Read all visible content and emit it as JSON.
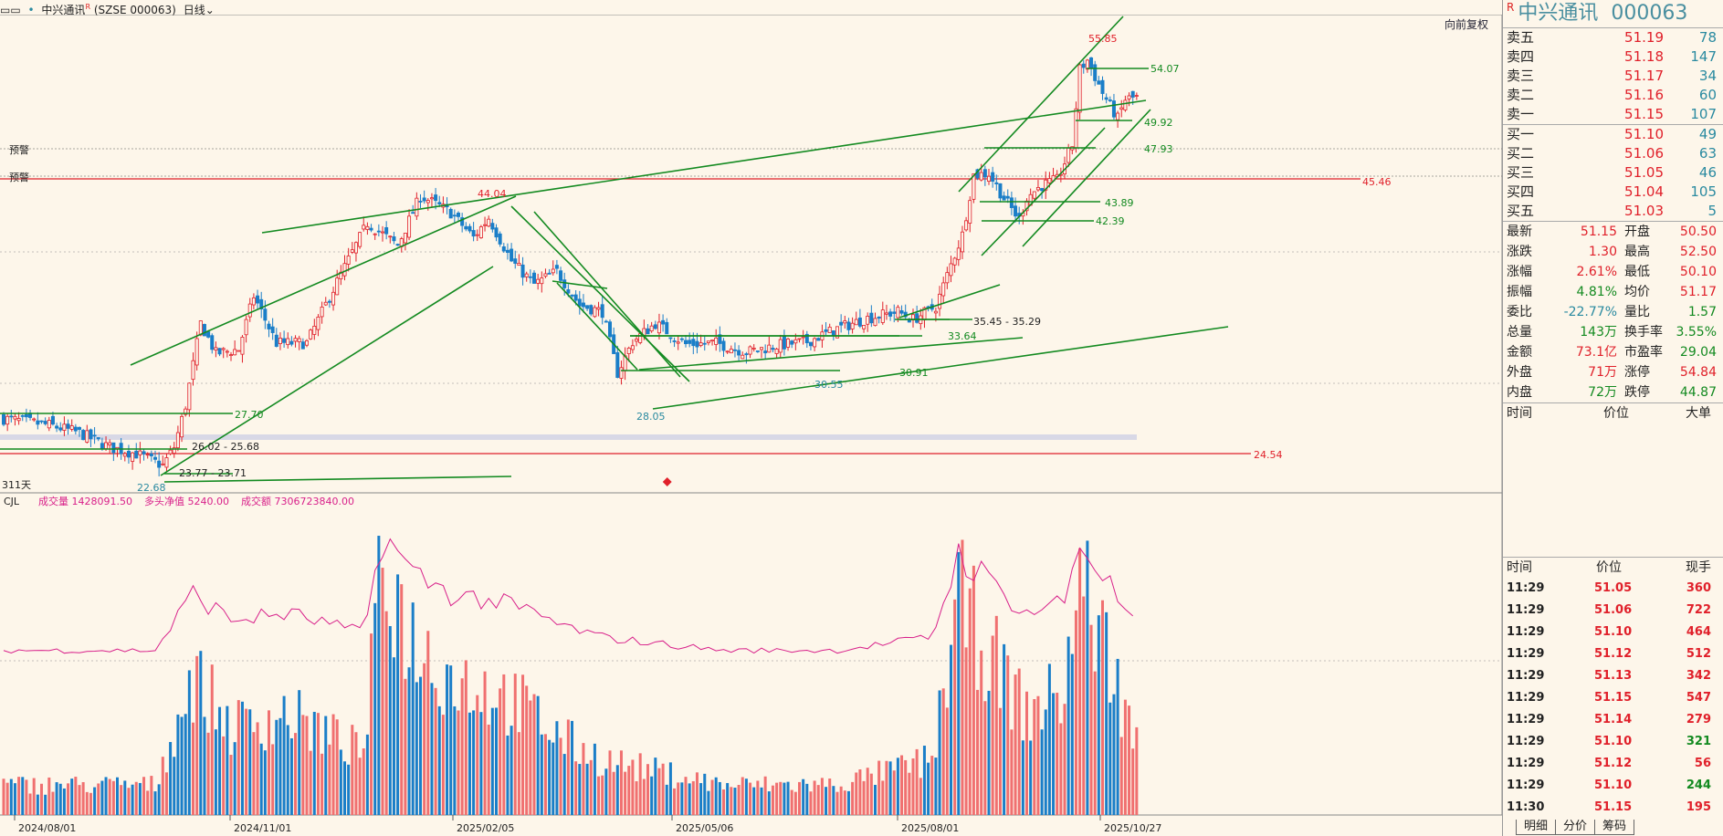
{
  "header": {
    "stock_name": "中兴通讯",
    "superscript": "R",
    "market_code": "(SZSE 000063)",
    "period": "日线",
    "forward_adjust": "向前复权"
  },
  "right_panel": {
    "title_badge": "R",
    "title_name": "中兴通讯",
    "title_code": "000063",
    "sell": [
      {
        "label": "卖五",
        "price": "51.19",
        "vol": "78"
      },
      {
        "label": "卖四",
        "price": "51.18",
        "vol": "147"
      },
      {
        "label": "卖三",
        "price": "51.17",
        "vol": "34"
      },
      {
        "label": "卖二",
        "price": "51.16",
        "vol": "60"
      },
      {
        "label": "卖一",
        "price": "51.15",
        "vol": "107"
      }
    ],
    "buy": [
      {
        "label": "买一",
        "price": "51.10",
        "vol": "49"
      },
      {
        "label": "买二",
        "price": "51.06",
        "vol": "63"
      },
      {
        "label": "买三",
        "price": "51.05",
        "vol": "46"
      },
      {
        "label": "买四",
        "price": "51.04",
        "vol": "105"
      },
      {
        "label": "买五",
        "price": "51.03",
        "vol": "5"
      }
    ],
    "stats": [
      {
        "l1": "最新",
        "v1": "51.15",
        "c1": "red",
        "l2": "开盘",
        "v2": "50.50",
        "c2": "red"
      },
      {
        "l1": "涨跌",
        "v1": "1.30",
        "c1": "red",
        "l2": "最高",
        "v2": "52.50",
        "c2": "red"
      },
      {
        "l1": "涨幅",
        "v1": "2.61%",
        "c1": "red",
        "l2": "最低",
        "v2": "50.10",
        "c2": "red"
      },
      {
        "l1": "振幅",
        "v1": "4.81%",
        "c1": "green",
        "l2": "均价",
        "v2": "51.17",
        "c2": "red"
      },
      {
        "l1": "委比",
        "v1": "-22.77%",
        "c1": "teal",
        "l2": "量比",
        "v2": "1.57",
        "c2": "green"
      },
      {
        "l1": "总量",
        "v1": "143万",
        "c1": "green",
        "l2": "换手率",
        "v2": "3.55%",
        "c2": "green"
      },
      {
        "l1": "金额",
        "v1": "73.1亿",
        "c1": "red",
        "l2": "市盈率",
        "v2": "29.04",
        "c2": "green"
      },
      {
        "l1": "外盘",
        "v1": "71万",
        "c1": "red",
        "l2": "涨停",
        "v2": "54.84",
        "c2": "red"
      },
      {
        "l1": "内盘",
        "v1": "72万",
        "c1": "green",
        "l2": "跌停",
        "v2": "44.87",
        "c2": "green"
      }
    ],
    "bigorder_header": {
      "time": "时间",
      "price": "价位",
      "big": "大单"
    },
    "ticks_header": {
      "time": "时间",
      "price": "价位",
      "vol": "现手"
    },
    "ticks": [
      {
        "time": "11:29",
        "price": "51.05",
        "vol": "360",
        "vc": "red"
      },
      {
        "time": "11:29",
        "price": "51.06",
        "vol": "722",
        "vc": "red"
      },
      {
        "time": "11:29",
        "price": "51.10",
        "vol": "464",
        "vc": "red"
      },
      {
        "time": "11:29",
        "price": "51.12",
        "vol": "512",
        "vc": "red"
      },
      {
        "time": "11:29",
        "price": "51.13",
        "vol": "342",
        "vc": "red"
      },
      {
        "time": "11:29",
        "price": "51.15",
        "vol": "547",
        "vc": "red"
      },
      {
        "time": "11:29",
        "price": "51.14",
        "vol": "279",
        "vc": "red"
      },
      {
        "time": "11:29",
        "price": "51.10",
        "vol": "321",
        "vc": "green"
      },
      {
        "time": "11:29",
        "price": "51.12",
        "vol": "56",
        "vc": "red"
      },
      {
        "time": "11:29",
        "price": "51.10",
        "vol": "244",
        "vc": "green"
      },
      {
        "time": "11:30",
        "price": "51.15",
        "vol": "195",
        "vc": "red"
      }
    ],
    "tabs": [
      "明细",
      "分价",
      "筹码"
    ]
  },
  "indicator": {
    "name": "CJL",
    "vol_label": "成交量 1428091.50",
    "net_label": "多头净值 5240.00",
    "amt_label": "成交额 7306723840.00"
  },
  "price_labels": [
    {
      "text": "55.85",
      "price": 55.85,
      "color": "#e0202a"
    },
    {
      "text": "54.07",
      "price": 54.07,
      "color": "#138a20"
    },
    {
      "text": "49.92",
      "price": 49.92,
      "color": "#138a20"
    },
    {
      "text": "47.93",
      "price": 47.93,
      "color": "#138a20"
    },
    {
      "text": "45.46",
      "price": 45.46,
      "color": "#e0202a"
    },
    {
      "text": "44.04",
      "price": 44.04,
      "color": "#e0202a"
    },
    {
      "text": "43.89",
      "price": 43.89,
      "color": "#138a20"
    },
    {
      "text": "42.39",
      "price": 42.39,
      "color": "#138a20"
    },
    {
      "text": "35.45 - 35.29",
      "price": 35.45,
      "color": "#222"
    },
    {
      "text": "33.64",
      "price": 33.64,
      "color": "#138a20"
    },
    {
      "text": "30.91",
      "price": 30.91,
      "color": "#138a20"
    },
    {
      "text": "30.55",
      "price": 30.55,
      "color": "#2a8aa0"
    },
    {
      "text": "28.05",
      "price": 28.05,
      "color": "#2a8aa0"
    },
    {
      "text": "27.70",
      "price": 27.7,
      "color": "#138a20"
    },
    {
      "text": "26.02 - 25.68",
      "price": 26.02,
      "color": "#222"
    },
    {
      "text": "24.54",
      "price": 24.54,
      "color": "#e0202a"
    },
    {
      "text": "23.77 - 23.71",
      "price": 23.77,
      "color": "#222"
    },
    {
      "text": "22.68",
      "price": 22.68,
      "color": "#2a8aa0"
    }
  ],
  "alert_labels": [
    "预警",
    "预警"
  ],
  "days_label": "311天",
  "x_axis": [
    "2024/08/01",
    "2024/11/01",
    "2025/02/05",
    "2025/05/06",
    "2025/08/01",
    "2025/10/27"
  ],
  "chart_data": {
    "type": "candlestick",
    "price_ylim": [
      21.5,
      57.5
    ],
    "anchors": [
      [
        0,
        26.5
      ],
      [
        12,
        26.0
      ],
      [
        20,
        25.4
      ],
      [
        28,
        24.3
      ],
      [
        35,
        23.8
      ],
      [
        42,
        22.9
      ],
      [
        45,
        24.3
      ],
      [
        48,
        27.5
      ],
      [
        52,
        33.8
      ],
      [
        56,
        31.5
      ],
      [
        62,
        31.8
      ],
      [
        66,
        35.9
      ],
      [
        72,
        32.3
      ],
      [
        80,
        32.3
      ],
      [
        88,
        37.0
      ],
      [
        96,
        41.5
      ],
      [
        104,
        39.8
      ],
      [
        110,
        43.6
      ],
      [
        118,
        42.3
      ],
      [
        124,
        40.4
      ],
      [
        128,
        41.9
      ],
      [
        134,
        38.6
      ],
      [
        140,
        36.8
      ],
      [
        146,
        37.8
      ],
      [
        152,
        35.2
      ],
      [
        158,
        34.7
      ],
      [
        162,
        30.0
      ],
      [
        166,
        32.4
      ],
      [
        172,
        33.8
      ],
      [
        180,
        32.2
      ],
      [
        188,
        32.3
      ],
      [
        196,
        31.6
      ],
      [
        204,
        32.1
      ],
      [
        212,
        32.4
      ],
      [
        220,
        33.4
      ],
      [
        228,
        34.2
      ],
      [
        236,
        34.7
      ],
      [
        240,
        34.1
      ],
      [
        246,
        35.1
      ],
      [
        250,
        38.3
      ],
      [
        253,
        40.6
      ],
      [
        256,
        45.2
      ],
      [
        260,
        45.3
      ],
      [
        264,
        43.4
      ],
      [
        268,
        41.8
      ],
      [
        270,
        43.5
      ],
      [
        274,
        44.4
      ],
      [
        278,
        44.8
      ],
      [
        282,
        47.5
      ],
      [
        284,
        53.3
      ],
      [
        286,
        54.0
      ],
      [
        290,
        51.5
      ],
      [
        294,
        49.5
      ],
      [
        296,
        51.0
      ],
      [
        299,
        51.15
      ]
    ],
    "volume_anchors": [
      [
        0,
        0.12
      ],
      [
        40,
        0.12
      ],
      [
        50,
        0.55
      ],
      [
        60,
        0.35
      ],
      [
        75,
        0.4
      ],
      [
        95,
        0.25
      ],
      [
        100,
        1.0
      ],
      [
        108,
        0.7
      ],
      [
        118,
        0.55
      ],
      [
        128,
        0.5
      ],
      [
        138,
        0.42
      ],
      [
        148,
        0.3
      ],
      [
        158,
        0.22
      ],
      [
        170,
        0.18
      ],
      [
        190,
        0.12
      ],
      [
        220,
        0.12
      ],
      [
        245,
        0.22
      ],
      [
        252,
        0.85
      ],
      [
        260,
        0.65
      ],
      [
        270,
        0.4
      ],
      [
        280,
        0.5
      ],
      [
        284,
        0.95
      ],
      [
        290,
        0.7
      ],
      [
        299,
        0.28
      ]
    ]
  }
}
